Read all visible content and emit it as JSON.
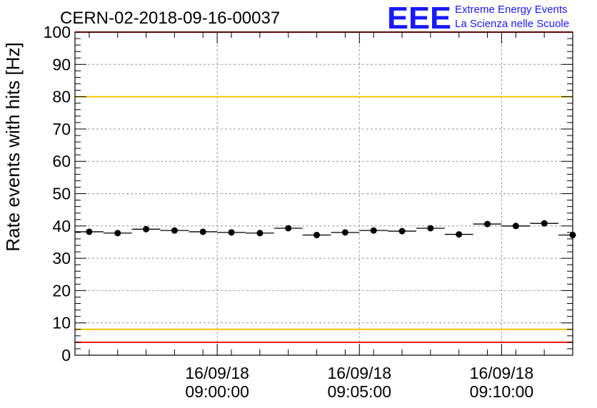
{
  "header": {
    "run_title": "CERN-02-2018-09-16-00037",
    "logo_text": "EEE",
    "logo_line1": "Extreme Energy Events",
    "logo_line2": "La Scienza nelle Scuole"
  },
  "colors": {
    "upper_limit_line": "#ee1111",
    "lower_limit_line": "#ee1111",
    "upper_warn_line": "#f5c400",
    "lower_warn_line": "#f5c400",
    "logo": "#1a1aff",
    "marker": "#000000",
    "grid": "#999999"
  },
  "chart_data": {
    "type": "scatter",
    "title": "CERN-02-2018-09-16-00037",
    "xlabel": "",
    "ylabel": "Rate events with hits [Hz]",
    "ylim": [
      0,
      100
    ],
    "x_unit": "minutes after 08:55:00 on 16/09/18",
    "xlim": [
      0,
      17.5
    ],
    "x_ticks": [
      {
        "x": 5,
        "date": "16/09/18",
        "time": "09:00:00"
      },
      {
        "x": 10,
        "date": "16/09/18",
        "time": "09:05:00"
      },
      {
        "x": 15,
        "date": "16/09/18",
        "time": "09:10:00"
      }
    ],
    "y_ticks": [
      0,
      10,
      20,
      30,
      40,
      50,
      60,
      70,
      80,
      90,
      100
    ],
    "grid": true,
    "reference_lines": [
      {
        "y": 100,
        "color": "#ee1111"
      },
      {
        "y": 80,
        "color": "#f5c400"
      },
      {
        "y": 8,
        "color": "#f5c400"
      },
      {
        "y": 4,
        "color": "#ee1111"
      }
    ],
    "bin_width": 1,
    "points": [
      {
        "x": 0.5,
        "y": 38.2
      },
      {
        "x": 1.5,
        "y": 37.8
      },
      {
        "x": 2.5,
        "y": 39.0
      },
      {
        "x": 3.5,
        "y": 38.6
      },
      {
        "x": 4.5,
        "y": 38.2
      },
      {
        "x": 5.5,
        "y": 38.0
      },
      {
        "x": 6.5,
        "y": 37.8
      },
      {
        "x": 7.5,
        "y": 39.3
      },
      {
        "x": 8.5,
        "y": 37.2
      },
      {
        "x": 9.5,
        "y": 38.0
      },
      {
        "x": 10.5,
        "y": 38.6
      },
      {
        "x": 11.5,
        "y": 38.4
      },
      {
        "x": 12.5,
        "y": 39.3
      },
      {
        "x": 13.5,
        "y": 37.4
      },
      {
        "x": 14.5,
        "y": 40.6
      },
      {
        "x": 15.5,
        "y": 40.0
      },
      {
        "x": 16.5,
        "y": 40.8
      },
      {
        "x": 17.5,
        "y": 37.2
      }
    ]
  }
}
